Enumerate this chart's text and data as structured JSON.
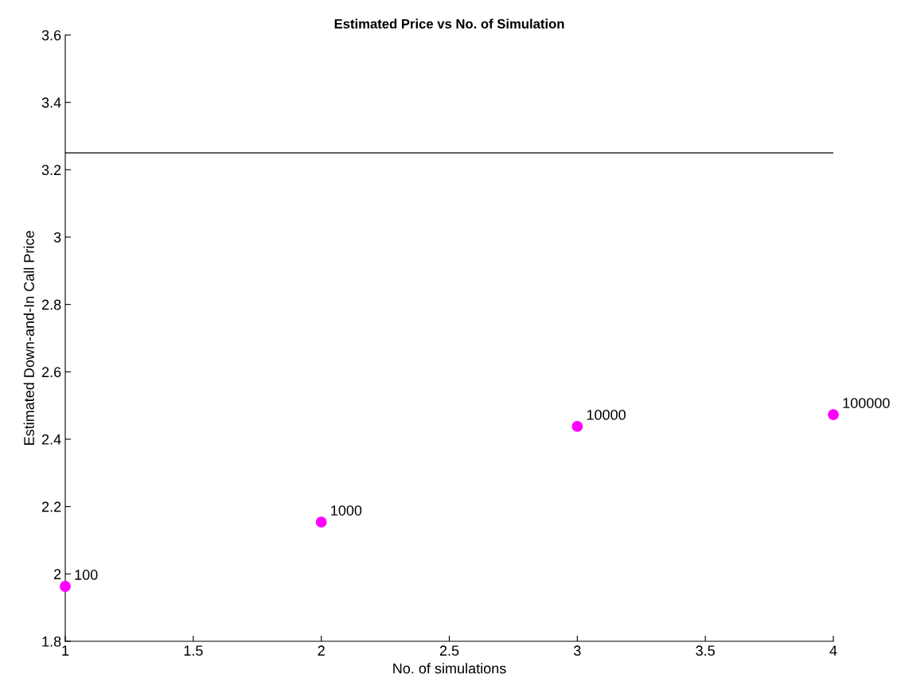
{
  "chart_data": {
    "type": "scatter",
    "title": "Estimated Price vs No. of Simulation",
    "xlabel": "No. of simulations",
    "ylabel": "Estimated Down-and-In Call Price",
    "x": [
      1,
      2,
      3,
      4
    ],
    "series": [
      {
        "color": "#ff00ff",
        "values": [
          1.963,
          2.154,
          2.438,
          2.473
        ]
      }
    ],
    "annotations": [
      {
        "text": "100",
        "x": 1,
        "y": 1.963
      },
      {
        "text": "1000",
        "x": 2,
        "y": 2.154
      },
      {
        "text": "10000",
        "x": 3,
        "y": 2.438
      },
      {
        "text": "100000",
        "x": 4,
        "y": 2.473
      }
    ],
    "ref_lines": [
      {
        "axis": "y",
        "value": 3.25,
        "color": "#000000"
      }
    ],
    "xlim": [
      1,
      4
    ],
    "ylim": [
      1.8,
      3.6
    ],
    "xticks": [
      1,
      1.5,
      2,
      2.5,
      3,
      3.5,
      4
    ],
    "yticks": [
      1.8,
      2,
      2.2,
      2.4,
      2.6,
      2.8,
      3,
      3.2,
      3.4,
      3.6
    ],
    "grid": false,
    "legend": false,
    "marker": "circle"
  }
}
